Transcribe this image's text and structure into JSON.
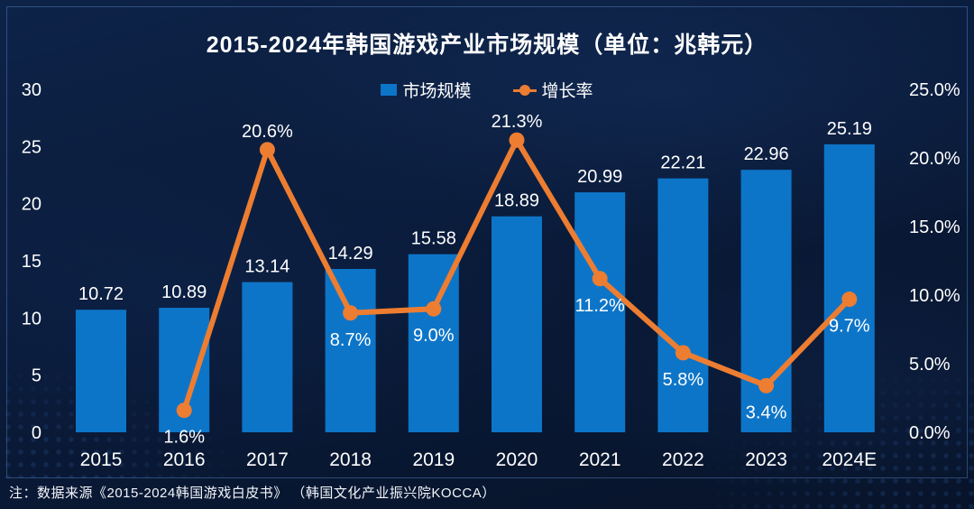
{
  "title": "2015-2024年韩国游戏产业市场规模（单位：兆韩元）",
  "legend": {
    "bars_label": "市场规模",
    "line_label": "增长率"
  },
  "footer_note": "注：数据来源《2015-2024韩国游戏白皮书》 （韩国文化产业振兴院KOCCA）",
  "colors": {
    "bar": "#0d75c8",
    "line": "#ed7d31",
    "text": "#ffffff",
    "background": "#0a1b3a",
    "frame": "rgba(98,150,220,0.40)"
  },
  "chart_data": {
    "type": "bar",
    "subtype": "bar+line-combo",
    "title": "2015-2024年韩国游戏产业市场规模（单位：兆韩元）",
    "categories": [
      "2015",
      "2016",
      "2017",
      "2018",
      "2019",
      "2020",
      "2021",
      "2022",
      "2023",
      "2024E"
    ],
    "series": [
      {
        "name": "市场规模",
        "type": "bar",
        "axis": "left",
        "values": [
          10.72,
          10.89,
          13.14,
          14.29,
          15.58,
          18.89,
          20.99,
          22.21,
          22.96,
          25.19
        ],
        "labels": [
          "10.72",
          "10.89",
          "13.14",
          "14.29",
          "15.58",
          "18.89",
          "20.99",
          "22.21",
          "22.96",
          "25.19"
        ]
      },
      {
        "name": "增长率",
        "type": "line",
        "axis": "right",
        "values": [
          null,
          1.6,
          20.6,
          8.7,
          9.0,
          21.3,
          11.2,
          5.8,
          3.4,
          9.7
        ],
        "labels": [
          null,
          "1.6%",
          "20.6%",
          "8.7%",
          "9.0%",
          "21.3%",
          "11.2%",
          "5.8%",
          "3.4%",
          "9.7%"
        ],
        "label_positions": [
          null,
          "below",
          "above",
          "below",
          "below",
          "above",
          "below",
          "below",
          "below",
          "below"
        ]
      }
    ],
    "left_axis": {
      "min": 0,
      "max": 30,
      "ticks_top_to_bottom": [
        "30",
        "25",
        "20",
        "15",
        "10",
        "5",
        "0"
      ]
    },
    "right_axis": {
      "min": 0,
      "max": 25,
      "ticks_top_to_bottom": [
        "25.0%",
        "20.0%",
        "15.0%",
        "10.0%",
        "5.0%",
        "0.0%"
      ]
    },
    "grid": false,
    "legend_position": "top-center"
  }
}
